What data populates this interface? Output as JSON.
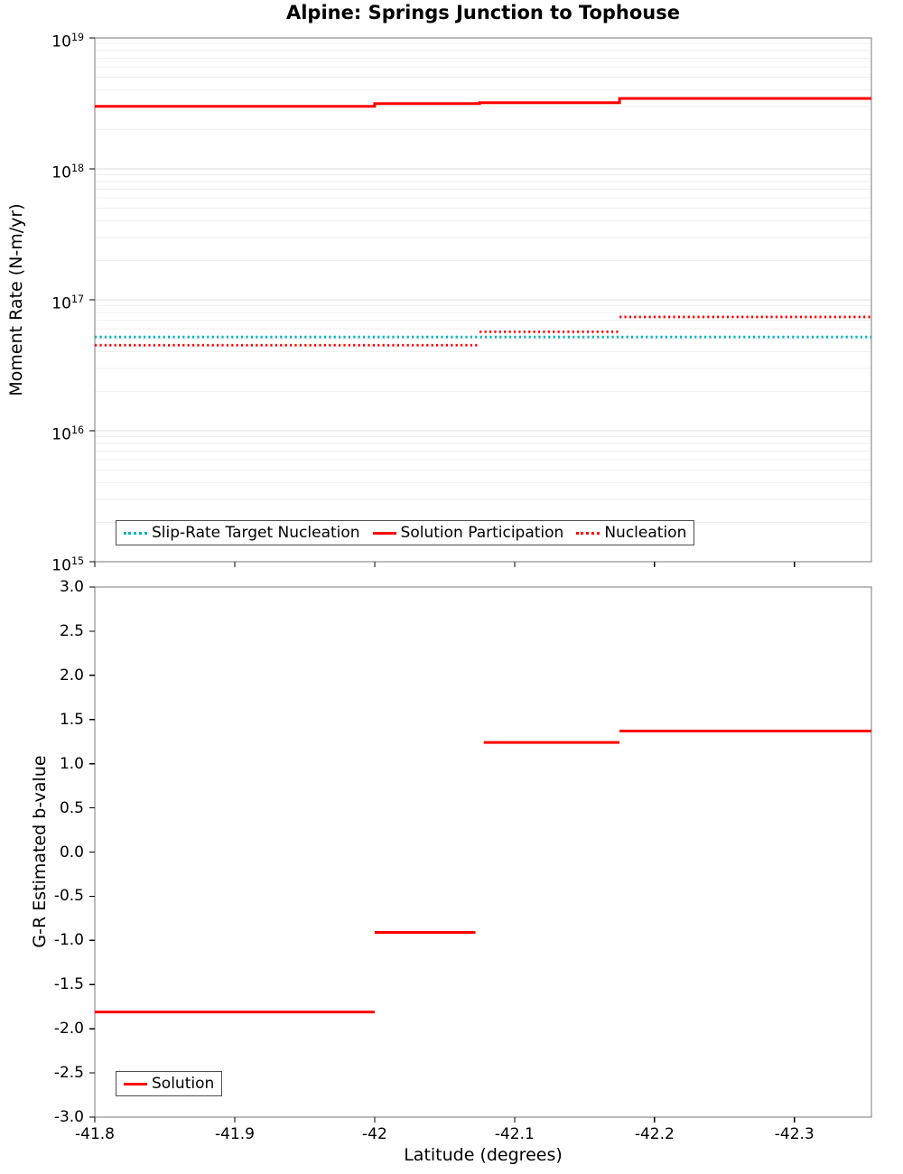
{
  "chart_data": [
    {
      "type": "line",
      "title": "Alpine: Springs Junction to Tophouse",
      "ylabel": "Moment Rate (N-m/yr)",
      "yscale": "log",
      "ylim": [
        1000000000000000.0,
        1e+19
      ],
      "xlim": [
        -41.8,
        -42.355
      ],
      "grid": "horizontal-log",
      "y_tick_base": "10",
      "y_tick_exponents": [
        19,
        18,
        17,
        16,
        15
      ],
      "x_tick_values": [
        -41.8,
        -41.9,
        -42,
        -42.1,
        -42.2,
        -42.3
      ],
      "x_tick_labels": [],
      "legend_position": "bottom-left-inside",
      "series": [
        {
          "name": "Slip-Rate Target Nucleation",
          "style": "dotted",
          "color": "#00b2bc",
          "segments": [
            {
              "x": [
                -41.8,
                -42.355
              ],
              "y": 5.2e+16
            }
          ]
        },
        {
          "name": "Solution Participation",
          "style": "solid",
          "color": "#ff0000",
          "connected": true,
          "segments": [
            {
              "x": [
                -41.8,
                -42.0
              ],
              "y": 3e+18
            },
            {
              "x": [
                -42.0,
                -42.075
              ],
              "y": 3.15e+18
            },
            {
              "x": [
                -42.075,
                -42.175
              ],
              "y": 3.2e+18
            },
            {
              "x": [
                -42.175,
                -42.355
              ],
              "y": 3.45e+18
            }
          ]
        },
        {
          "name": "Nucleation",
          "style": "dotted",
          "color": "#ff0000",
          "segments": [
            {
              "x": [
                -41.8,
                -42.075
              ],
              "y": 4.5e+16
            },
            {
              "x": [
                -42.075,
                -42.175
              ],
              "y": 5.7e+16
            },
            {
              "x": [
                -42.175,
                -42.355
              ],
              "y": 7.4e+16
            }
          ]
        }
      ]
    },
    {
      "type": "line",
      "title": "",
      "ylabel": "G-R Estimated b-value",
      "xlabel": "Latitude (degrees)",
      "yscale": "linear",
      "ylim": [
        -3.0,
        3.0
      ],
      "xlim": [
        -41.8,
        -42.355
      ],
      "grid": "none",
      "y_tick_values": [
        3.0,
        2.5,
        2.0,
        1.5,
        1.0,
        0.5,
        0.0,
        -0.5,
        -1.0,
        -1.5,
        -2.0,
        -2.5,
        -3.0
      ],
      "y_tick_labels": [
        "3.0",
        "2.5",
        "2.0",
        "1.5",
        "1.0",
        "0.5",
        "0.0",
        "-0.5",
        "-1.0",
        "-1.5",
        "-2.0",
        "-2.5",
        "-3.0"
      ],
      "x_tick_values": [
        -41.8,
        -41.9,
        -42,
        -42.1,
        -42.2,
        -42.3
      ],
      "x_tick_labels": [
        "-41.8",
        "-41.9",
        "-42",
        "-42.1",
        "-42.2",
        "-42.3"
      ],
      "legend_position": "bottom-left-inside",
      "series": [
        {
          "name": "Solution",
          "style": "solid",
          "color": "#ff0000",
          "segments": [
            {
              "x": [
                -41.8,
                -42.0
              ],
              "y": -1.81
            },
            {
              "x": [
                -42.0,
                -42.072
              ],
              "y": -0.91
            },
            {
              "x": [
                -42.078,
                -42.175
              ],
              "y": 1.24
            },
            {
              "x": [
                -42.175,
                -42.355
              ],
              "y": 1.37
            }
          ]
        }
      ]
    }
  ],
  "colors": {
    "solution_red": "#ff0000",
    "target_teal": "#00b2bc",
    "grid_major": "#dcdcdc",
    "grid_minor": "#efefef",
    "spine": "#7a7a7a"
  }
}
